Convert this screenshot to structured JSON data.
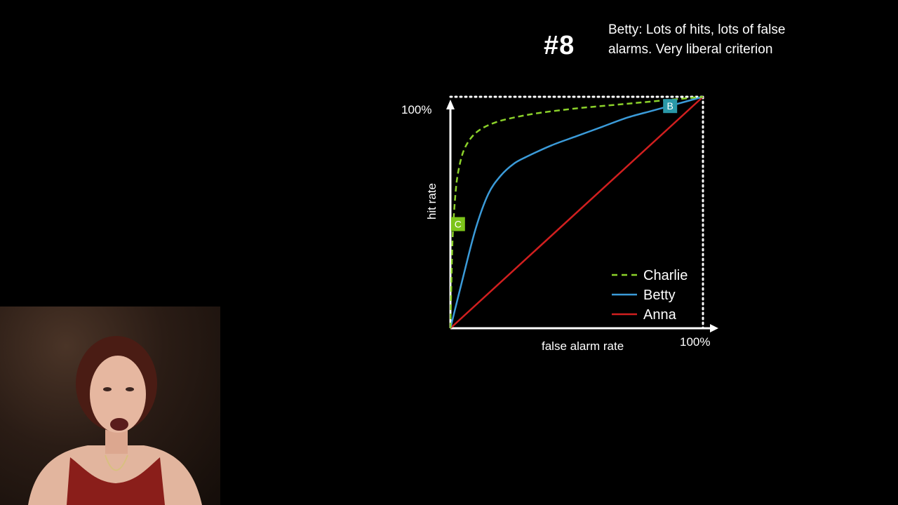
{
  "slide": {
    "number": "#8",
    "caption": "Betty: Lots of hits, lots of false alarms. Very liberal criterion"
  },
  "chart_data": {
    "type": "line",
    "title": "",
    "xlabel": "false alarm rate",
    "ylabel": "hit rate",
    "x_tick_labels": [
      "100%"
    ],
    "y_tick_labels": [
      "100%"
    ],
    "xlim": [
      0,
      100
    ],
    "ylim": [
      0,
      100
    ],
    "legend_position": "bottom-right",
    "series": [
      {
        "name": "Charlie",
        "style": "dashed",
        "color": "#8bd12a",
        "x": [
          0,
          0.5,
          1,
          2,
          3,
          5,
          8,
          12,
          18,
          25,
          35,
          50,
          65,
          80,
          100
        ],
        "y": [
          0,
          25,
          42,
          58,
          67,
          76,
          82,
          86,
          89,
          91,
          93,
          95,
          96.5,
          98,
          100
        ]
      },
      {
        "name": "Betty",
        "style": "solid",
        "color": "#3b9bd9",
        "x": [
          0,
          5,
          10,
          15,
          20,
          25,
          30,
          40,
          50,
          60,
          70,
          80,
          90,
          100
        ],
        "y": [
          0,
          22,
          43,
          58,
          66,
          71,
          74,
          79,
          83,
          87,
          91,
          94,
          97,
          100
        ]
      },
      {
        "name": "Anna",
        "style": "solid",
        "color": "#d11f1f",
        "x": [
          0,
          100
        ],
        "y": [
          0,
          100
        ]
      }
    ],
    "markers": [
      {
        "label": "C",
        "series": "Charlie",
        "x": 3,
        "y": 45,
        "color": "#7cc41a"
      },
      {
        "label": "B",
        "series": "Betty",
        "x": 87,
        "y": 96,
        "color": "#2a98a8"
      }
    ]
  }
}
